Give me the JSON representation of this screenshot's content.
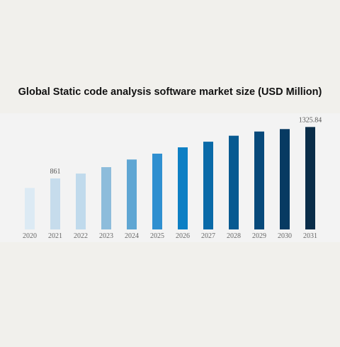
{
  "chart_data": {
    "type": "bar",
    "title": "Global Static code analysis software market size (USD Million)",
    "xlabel": "",
    "ylabel": "",
    "categories": [
      "2020",
      "2021",
      "2022",
      "2023",
      "2024",
      "2025",
      "2026",
      "2027",
      "2028",
      "2029",
      "2030",
      "2031"
    ],
    "values": [
      775,
      861,
      905,
      963,
      1032,
      1085,
      1142,
      1193,
      1247,
      1285,
      1307,
      1325.84
    ],
    "data_labels": {
      "2021": "861",
      "2031": "1325.84"
    },
    "ylim": [
      400,
      1360
    ],
    "grid": false,
    "legend": "none",
    "colors": [
      "#dceaf4",
      "#c6dcec",
      "#c0daec",
      "#8dbcdb",
      "#5fa6d3",
      "#2f8fd0",
      "#0d7fc4",
      "#0a6aa8",
      "#085a91",
      "#07497a",
      "#073a62",
      "#0a2d49"
    ]
  }
}
